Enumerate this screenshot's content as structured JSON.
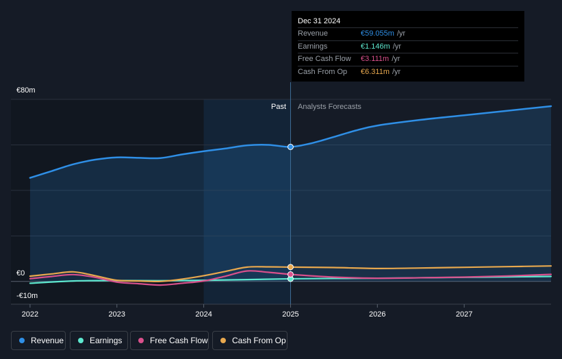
{
  "tooltip": {
    "date": "Dec 31 2024",
    "rows": [
      {
        "label": "Revenue",
        "value": "€59.055m",
        "unit": "/yr",
        "color": "#2f8fe6"
      },
      {
        "label": "Earnings",
        "value": "€1.146m",
        "unit": "/yr",
        "color": "#5ee8cf"
      },
      {
        "label": "Free Cash Flow",
        "value": "€3.111m",
        "unit": "/yr",
        "color": "#d9508c"
      },
      {
        "label": "Cash From Op",
        "value": "€6.311m",
        "unit": "/yr",
        "color": "#e8a84e"
      }
    ]
  },
  "legend": [
    {
      "label": "Revenue",
      "color": "#2f8fe6"
    },
    {
      "label": "Earnings",
      "color": "#5ee8cf"
    },
    {
      "label": "Free Cash Flow",
      "color": "#d9508c"
    },
    {
      "label": "Cash From Op",
      "color": "#e8a84e"
    }
  ],
  "chart_data": {
    "type": "line",
    "title": "",
    "xlabel": "",
    "ylabel": "",
    "y_tick_labels": [
      "€80m",
      "€0",
      "-€10m"
    ],
    "x_tick_labels": [
      "2022",
      "2023",
      "2024",
      "2025",
      "2026",
      "2027"
    ],
    "x_ticks": [
      2022,
      2023,
      2024,
      2025,
      2026,
      2027
    ],
    "xlim": [
      2021.78,
      2028.0
    ],
    "ylim": [
      -10,
      80
    ],
    "grid": true,
    "past_label": "Past",
    "forecast_label": "Analysts Forecasts",
    "past_boundary": 2025.0,
    "highlight_start": 2024.0,
    "marker_x": 2025.0,
    "series": [
      {
        "name": "Revenue",
        "color": "#2f8fe6",
        "x": [
          2022.0,
          2022.25,
          2022.5,
          2022.75,
          2023.0,
          2023.25,
          2023.5,
          2023.75,
          2024.0,
          2024.25,
          2024.5,
          2024.75,
          2025.0,
          2025.25,
          2025.5,
          2025.75,
          2026.0,
          2026.5,
          2027.0,
          2027.5,
          2028.0
        ],
        "values": [
          45.5,
          48.5,
          51.5,
          53.5,
          54.5,
          54.3,
          54.2,
          55.8,
          57.2,
          58.4,
          59.8,
          60.0,
          59.1,
          60.8,
          63.5,
          66.3,
          68.5,
          71.0,
          73.0,
          75.0,
          77.0
        ]
      },
      {
        "name": "Earnings",
        "color": "#5ee8cf",
        "x": [
          2022.0,
          2022.5,
          2023.0,
          2023.5,
          2024.0,
          2024.5,
          2025.0,
          2025.5,
          2026.0,
          2026.5,
          2027.0,
          2027.5,
          2028.0
        ],
        "values": [
          -0.8,
          0.2,
          0.4,
          0.3,
          0.5,
          0.8,
          1.15,
          1.3,
          1.4,
          1.6,
          1.8,
          2.0,
          2.2
        ]
      },
      {
        "name": "Free Cash Flow",
        "color": "#d9508c",
        "x": [
          2022.0,
          2022.25,
          2022.5,
          2022.75,
          2023.0,
          2023.25,
          2023.5,
          2023.75,
          2024.0,
          2024.25,
          2024.5,
          2024.75,
          2025.0,
          2025.5,
          2026.0,
          2026.5,
          2027.0,
          2027.5,
          2028.0
        ],
        "values": [
          1.2,
          2.2,
          3.0,
          1.8,
          -0.3,
          -1.0,
          -1.6,
          -0.8,
          0.2,
          2.3,
          4.6,
          4.0,
          3.1,
          1.9,
          1.4,
          1.6,
          1.9,
          2.4,
          3.1
        ]
      },
      {
        "name": "Cash From Op",
        "color": "#e8a84e",
        "x": [
          2022.0,
          2022.25,
          2022.5,
          2022.75,
          2023.0,
          2023.25,
          2023.5,
          2023.75,
          2024.0,
          2024.25,
          2024.5,
          2024.75,
          2025.0,
          2025.5,
          2026.0,
          2026.5,
          2027.0,
          2027.5,
          2028.0
        ],
        "values": [
          2.3,
          3.3,
          4.2,
          2.5,
          0.5,
          0.2,
          0.0,
          1.0,
          2.5,
          4.4,
          6.3,
          6.4,
          6.3,
          6.1,
          5.7,
          5.9,
          6.2,
          6.5,
          6.8
        ]
      }
    ]
  }
}
